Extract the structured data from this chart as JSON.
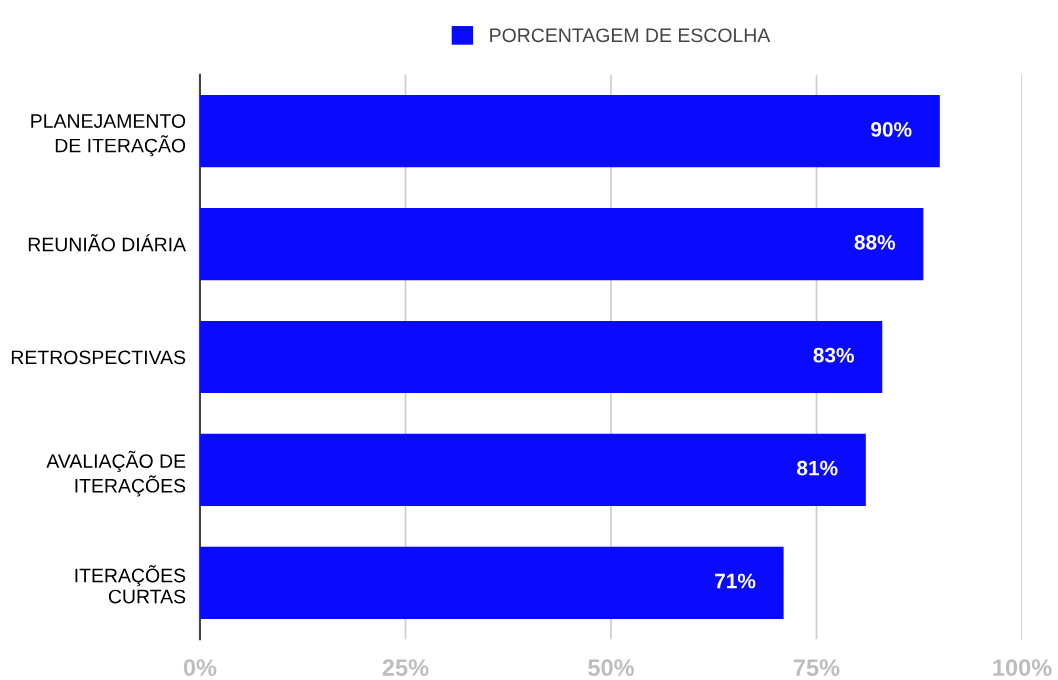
{
  "chart_data": {
    "type": "bar",
    "orientation": "horizontal",
    "categories": [
      "PLANEJAMENTO\nDE ITERAÇÃO",
      "REUNIÃO DIÁRIA",
      "RETROSPECTIVAS",
      "AVALIAÇÃO DE\nITERAÇÕES",
      "ITERAÇÕES\nCURTAS"
    ],
    "series": [
      {
        "name": "PORCENTAGEM DE ESCOLHA",
        "color": "#0a0aff",
        "values": [
          90,
          88,
          83,
          81,
          71
        ],
        "value_labels": [
          "90%",
          "88%",
          "83%",
          "81%",
          "71%"
        ]
      }
    ],
    "xlim": [
      0,
      100
    ],
    "xticks": [
      {
        "value": 0,
        "label": "0%"
      },
      {
        "value": 25,
        "label": "25%"
      },
      {
        "value": 50,
        "label": "50%"
      },
      {
        "value": 75,
        "label": "75%"
      },
      {
        "value": 100,
        "label": "100%"
      }
    ],
    "grid": "x",
    "legend": "top"
  }
}
